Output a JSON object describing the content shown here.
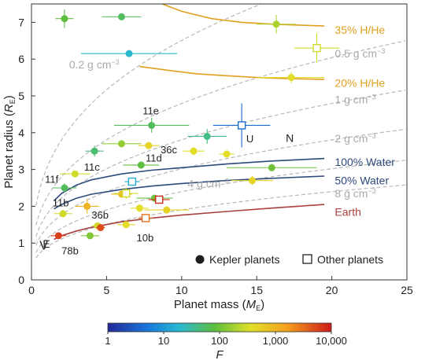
{
  "chart_data": {
    "type": "scatter",
    "xlabel_main": "Planet mass (",
    "xlabel_sym": "M",
    "xlabel_sub": "E",
    "xlabel_end": ")",
    "ylabel_main": "Planet radius (",
    "ylabel_sym": "R",
    "ylabel_sub": "E",
    "ylabel_end": ")",
    "xlim": [
      0,
      25
    ],
    "ylim": [
      0,
      7.5
    ],
    "xticks": [
      "0",
      "5",
      "10",
      "15",
      "20",
      "25"
    ],
    "yticks": [
      "0",
      "1",
      "2",
      "3",
      "4",
      "5",
      "6",
      "7"
    ],
    "legend": {
      "kepler": "Kepler planets",
      "other": "Other planets"
    },
    "colorbar": {
      "label": "F",
      "ticks": [
        "1",
        "10",
        "100",
        "1,000",
        "10,000"
      ]
    },
    "density_curves": [
      {
        "label": "0.2 g cm",
        "sup": "−3",
        "density": 0.2
      },
      {
        "label": "0.5 g cm",
        "sup": "−3",
        "density": 0.5
      },
      {
        "label": "1 g cm",
        "sup": "−3",
        "density": 1
      },
      {
        "label": "2 g cm",
        "sup": "−3",
        "density": 2
      },
      {
        "label": "4 g cm",
        "sup": "−3",
        "density": 4
      },
      {
        "label": "8 g cm",
        "sup": "−3",
        "density": 8
      }
    ],
    "model_curves": [
      {
        "label": "35% H/He",
        "color": "#e0a020",
        "points": [
          [
            8.7,
            7.5
          ],
          [
            10,
            7.3
          ],
          [
            12,
            7.1
          ],
          [
            14,
            7.0
          ],
          [
            16,
            6.95
          ],
          [
            18,
            6.92
          ],
          [
            19.5,
            6.9
          ]
        ]
      },
      {
        "label": "20% H/He",
        "color": "#e0a020",
        "points": [
          [
            7.2,
            5.8
          ],
          [
            9,
            5.7
          ],
          [
            11,
            5.6
          ],
          [
            13,
            5.55
          ],
          [
            15,
            5.5
          ],
          [
            17,
            5.47
          ],
          [
            19.5,
            5.45
          ]
        ]
      },
      {
        "label": "100% Water",
        "color": "#2c4a7a",
        "points": [
          [
            1.5,
            2.15
          ],
          [
            2,
            2.35
          ],
          [
            3,
            2.58
          ],
          [
            4,
            2.72
          ],
          [
            6,
            2.88
          ],
          [
            8,
            2.98
          ],
          [
            10,
            3.05
          ],
          [
            13,
            3.15
          ],
          [
            16,
            3.23
          ],
          [
            19.5,
            3.3
          ]
        ]
      },
      {
        "label": "50% Water",
        "color": "#2c4a7a",
        "points": [
          [
            1.5,
            1.93
          ],
          [
            2,
            2.05
          ],
          [
            3,
            2.22
          ],
          [
            4,
            2.33
          ],
          [
            6,
            2.46
          ],
          [
            8,
            2.55
          ],
          [
            10,
            2.62
          ],
          [
            13,
            2.7
          ],
          [
            16,
            2.76
          ],
          [
            19.5,
            2.82
          ]
        ]
      },
      {
        "label": "Earth",
        "color": "#a84040",
        "points": [
          [
            1.5,
            1.1
          ],
          [
            2,
            1.2
          ],
          [
            3,
            1.33
          ],
          [
            4,
            1.43
          ],
          [
            6,
            1.58
          ],
          [
            8,
            1.68
          ],
          [
            10,
            1.76
          ],
          [
            13,
            1.86
          ],
          [
            16,
            1.95
          ],
          [
            19.5,
            2.05
          ]
        ]
      }
    ],
    "points": [
      {
        "x": 2.2,
        "y": 7.1,
        "xerr": 0.6,
        "yerr": 0.25,
        "F": 80,
        "kind": "kepler"
      },
      {
        "x": 6.0,
        "y": 7.15,
        "xerr": 1.3,
        "yerr": 0.1,
        "F": 60,
        "kind": "kepler"
      },
      {
        "x": 16.3,
        "y": 6.95,
        "xerr": 1.3,
        "yerr": 0.25,
        "F": 200,
        "kind": "kepler"
      },
      {
        "x": 6.5,
        "y": 6.15,
        "xerr": 3.2,
        "yerr": 0.05,
        "F": 20,
        "kind": "kepler"
      },
      {
        "x": 19.0,
        "y": 6.3,
        "xerr": 1.5,
        "yerr": 0.4,
        "F": 300,
        "kind": "other"
      },
      {
        "x": 17.3,
        "y": 5.5,
        "xerr": 2.2,
        "yerr": 0.15,
        "F": 400,
        "kind": "kepler"
      },
      {
        "x": 8.0,
        "y": 4.2,
        "xerr": 2.5,
        "yerr": 0.2,
        "F": 60,
        "kind": "kepler",
        "label": "11e",
        "lx": -0.6,
        "ly": 0.4
      },
      {
        "x": 14.0,
        "y": 4.2,
        "xerr": 1.9,
        "yerr": 0.6,
        "F": 4,
        "kind": "other",
        "label": "U",
        "lx": 0.3,
        "ly": -0.35
      },
      {
        "x": 11.7,
        "y": 3.9,
        "xerr": 1.3,
        "yerr": 0.2,
        "F": 40,
        "kind": "kepler"
      },
      {
        "x": 6.0,
        "y": 3.7,
        "xerr": 1.3,
        "yerr": 0.1,
        "F": 150,
        "kind": "kepler"
      },
      {
        "x": 7.8,
        "y": 3.65,
        "xerr": 0.7,
        "yerr": 0.1,
        "F": 500,
        "kind": "kepler",
        "label": "36c",
        "lx": 0.8,
        "ly": -0.1
      },
      {
        "x": 10.8,
        "y": 3.5,
        "xerr": 0.7,
        "yerr": 0.12,
        "F": 400,
        "kind": "kepler"
      },
      {
        "x": 13.0,
        "y": 3.42,
        "xerr": 0.5,
        "yerr": 0.1,
        "F": 400,
        "kind": "kepler"
      },
      {
        "x": 4.2,
        "y": 3.5,
        "xerr": 0.6,
        "yerr": 0.15,
        "F": 50,
        "kind": "kepler"
      },
      {
        "x": 7.3,
        "y": 3.12,
        "xerr": 1.2,
        "yerr": 0.1,
        "F": 80,
        "kind": "kepler",
        "label": "11d",
        "lx": 0.3,
        "ly": 0.2
      },
      {
        "x": 16.0,
        "y": 3.05,
        "xerr": 3.0,
        "yerr": 0.1,
        "F": 100,
        "kind": "kepler"
      },
      {
        "x": 2.9,
        "y": 2.88,
        "xerr": 1.0,
        "yerr": 0.08,
        "F": 300,
        "kind": "kepler",
        "label": "11c",
        "lx": 0.6,
        "ly": 0.2
      },
      {
        "x": 14.7,
        "y": 2.7,
        "xerr": 1.4,
        "yerr": 0.12,
        "F": 500,
        "kind": "kepler"
      },
      {
        "x": 2.2,
        "y": 2.5,
        "xerr": 0.8,
        "yerr": 0.12,
        "F": 60,
        "kind": "kepler",
        "label": "11f",
        "lx": -1.3,
        "ly": 0.25
      },
      {
        "x": 6.7,
        "y": 2.67,
        "xerr": 0.5,
        "yerr": 0.1,
        "F": 15,
        "kind": "other"
      },
      {
        "x": 8.2,
        "y": 2.22,
        "xerr": 1.2,
        "yerr": 0.1,
        "F": 100,
        "kind": "kepler"
      },
      {
        "x": 6.0,
        "y": 2.33,
        "xerr": 0.7,
        "yerr": 0.08,
        "F": 800,
        "kind": "kepler"
      },
      {
        "x": 6.3,
        "y": 2.35,
        "xerr": 0.8,
        "yerr": 0.15,
        "F": 300,
        "kind": "other"
      },
      {
        "x": 2.1,
        "y": 1.8,
        "xerr": 0.6,
        "yerr": 0.1,
        "F": 300,
        "kind": "kepler",
        "label": "11b",
        "lx": -0.7,
        "ly": 0.3
      },
      {
        "x": 3.7,
        "y": 2.0,
        "xerr": 0.8,
        "yerr": 0.2,
        "F": 1000,
        "kind": "kepler"
      },
      {
        "x": 8.5,
        "y": 2.18,
        "xerr": 0.7,
        "yerr": 0.1,
        "F": 8000,
        "kind": "other"
      },
      {
        "x": 9.0,
        "y": 1.9,
        "xerr": 1.5,
        "yerr": 0.1,
        "F": 500,
        "kind": "kepler"
      },
      {
        "x": 7.2,
        "y": 1.95,
        "xerr": 0.6,
        "yerr": 0.1,
        "F": 400,
        "kind": "kepler"
      },
      {
        "x": 7.6,
        "y": 1.68,
        "xerr": 0.5,
        "yerr": 0.08,
        "F": 3000,
        "kind": "other"
      },
      {
        "x": 4.4,
        "y": 1.47,
        "xerr": 0.4,
        "yerr": 0.05,
        "F": 300,
        "kind": "kepler",
        "label": "36b",
        "lx": -0.4,
        "ly": 0.3
      },
      {
        "x": 4.6,
        "y": 1.42,
        "xerr": 0.3,
        "yerr": 0.05,
        "F": 5000,
        "kind": "kepler"
      },
      {
        "x": 6.3,
        "y": 1.5,
        "xerr": 0.6,
        "yerr": 0.08,
        "F": 400,
        "kind": "kepler",
        "label": "10b",
        "lx": 0.7,
        "ly": -0.35
      },
      {
        "x": 3.9,
        "y": 1.2,
        "xerr": 0.6,
        "yerr": 0.08,
        "F": 120,
        "kind": "kepler"
      },
      {
        "x": 1.8,
        "y": 1.2,
        "xerr": 0.5,
        "yerr": 0.08,
        "F": 6000,
        "kind": "kepler",
        "label": "78b",
        "lx": 0.2,
        "ly": -0.4
      }
    ],
    "solar_labels": [
      {
        "text": "N",
        "x": 17.2,
        "y": 3.88
      },
      {
        "text": "E",
        "x": 1.0,
        "y": 1.0
      },
      {
        "text": "V",
        "x": 0.815,
        "y": 0.95
      }
    ]
  }
}
